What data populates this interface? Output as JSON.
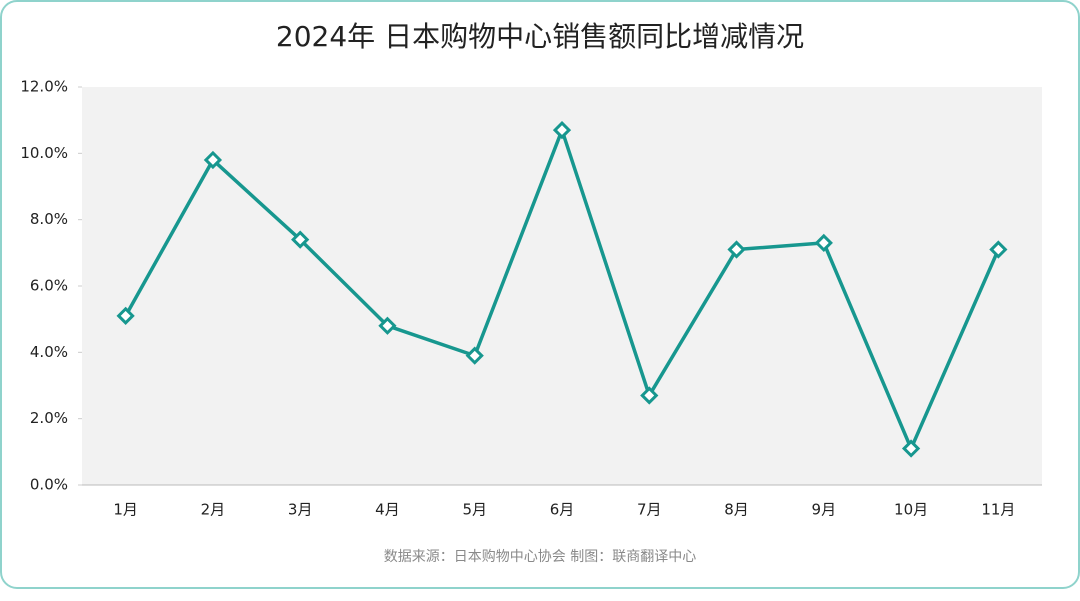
{
  "chart_data": {
    "type": "line",
    "title": "2024年 日本购物中心销售额同比增减情况",
    "categories": [
      "1月",
      "2月",
      "3月",
      "4月",
      "5月",
      "6月",
      "7月",
      "8月",
      "9月",
      "10月",
      "11月"
    ],
    "values": [
      5.1,
      9.8,
      7.4,
      4.8,
      3.9,
      10.7,
      2.7,
      7.1,
      7.3,
      1.1,
      7.1
    ],
    "color": "#17978f",
    "ylim": [
      0,
      12
    ],
    "yticks": [
      {
        "value": 0,
        "label": "0.0%"
      },
      {
        "value": 2,
        "label": "2.0%"
      },
      {
        "value": 4,
        "label": "4.0%"
      },
      {
        "value": 6,
        "label": "6.0%"
      },
      {
        "value": 8,
        "label": "8.0%"
      },
      {
        "value": 10,
        "label": "10.0%"
      },
      {
        "value": 12,
        "label": "12.0%"
      }
    ],
    "source": "数据来源：日本购物中心协会  制图：联商翻译中心"
  }
}
